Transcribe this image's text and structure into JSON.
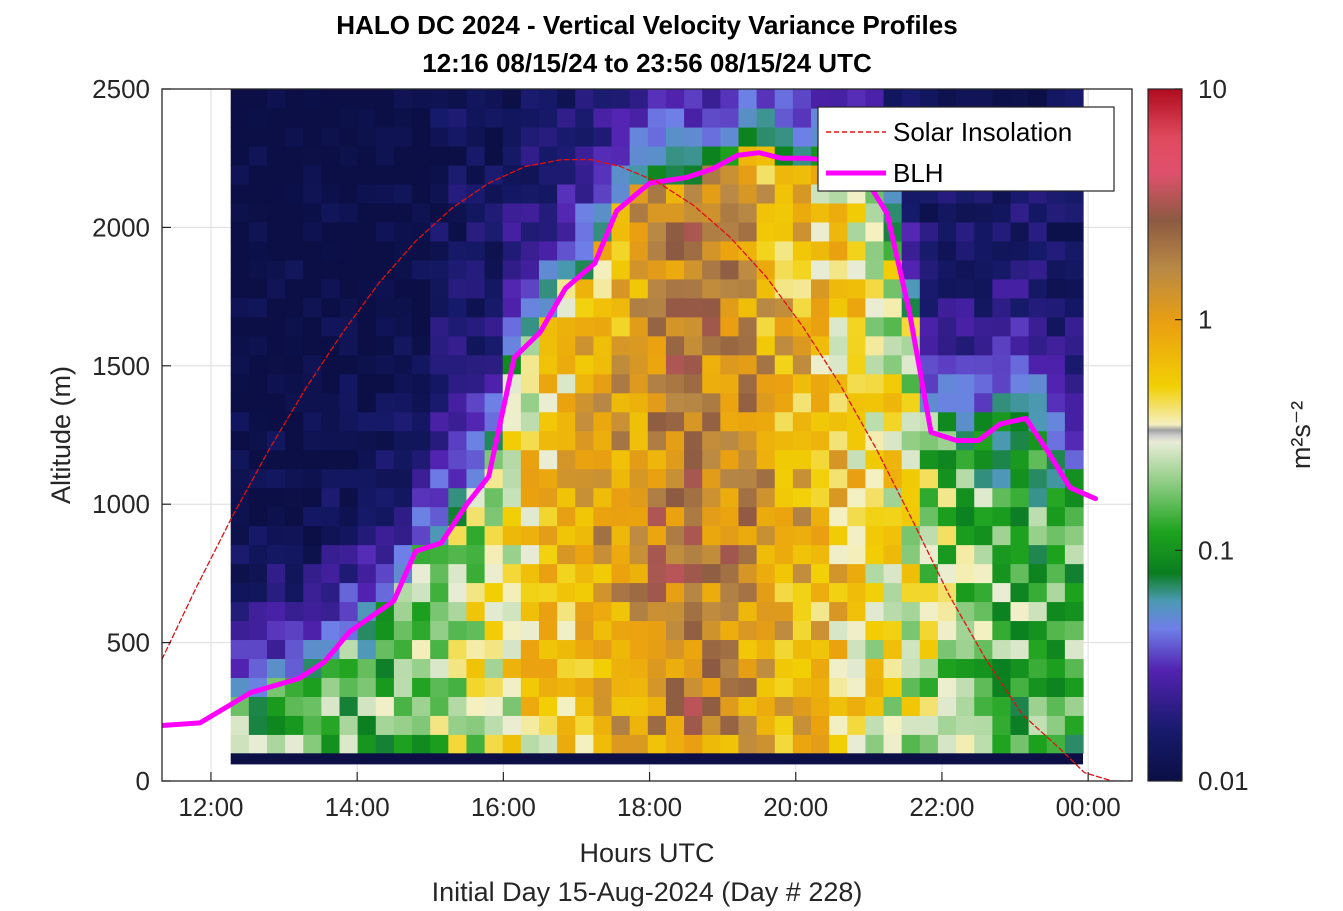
{
  "chart_data": {
    "type": "heatmap",
    "title": "HALO DC 2024 - Vertical Velocity Variance Profiles",
    "subtitle": "12:16 08/15/24 to 23:56 08/15/24  UTC",
    "xlabel": "Hours UTC",
    "xlabel2": "Initial Day 15-Aug-2024 (Day # 228)",
    "ylabel": "Altitude (m)",
    "xlim": [
      11.33,
      24.6
    ],
    "ylim": [
      0,
      2500
    ],
    "x_ticks": [
      12,
      14,
      16,
      18,
      20,
      22,
      24
    ],
    "x_tick_labels": [
      "12:00",
      "14:00",
      "16:00",
      "18:00",
      "20:00",
      "22:00",
      "00:00"
    ],
    "y_ticks": [
      0,
      500,
      1000,
      1500,
      2000,
      2500
    ],
    "y_tick_labels": [
      "0",
      "500",
      "1000",
      "1500",
      "2000",
      "2500"
    ],
    "grid": true,
    "colorbar": {
      "label": "m²s⁻²",
      "scale": "log",
      "range": [
        0.01,
        10
      ],
      "tick_labels": [
        "0.01",
        "0.1",
        "1",
        "10"
      ]
    },
    "heatmap_x_range_hours": [
      12.27,
      23.93
    ],
    "heatmap_y_range_m": [
      100,
      2500
    ],
    "legend": {
      "position": "top-right",
      "entries": [
        "Solar Insolation",
        "BLH"
      ]
    },
    "series": [
      {
        "name": "BLH",
        "color": "#ff00ff",
        "x": [
          11.3,
          11.85,
          12.55,
          13.2,
          13.55,
          13.9,
          14.5,
          14.8,
          15.15,
          15.5,
          15.8,
          16.15,
          16.5,
          16.85,
          17.25,
          17.55,
          18.0,
          18.5,
          18.85,
          19.2,
          19.5,
          19.8,
          20.15,
          20.5,
          20.9,
          21.25,
          21.55,
          21.85,
          22.2,
          22.5,
          22.8,
          23.15,
          23.45,
          23.75,
          24.1
        ],
        "y": [
          200,
          210,
          320,
          370,
          430,
          540,
          650,
          830,
          860,
          1000,
          1100,
          1530,
          1620,
          1780,
          1870,
          2060,
          2160,
          2180,
          2210,
          2260,
          2270,
          2250,
          2250,
          2240,
          2200,
          2050,
          1700,
          1260,
          1230,
          1230,
          1290,
          1310,
          1190,
          1060,
          1020
        ]
      },
      {
        "name": "Solar Insolation",
        "color": "#e01010",
        "style": "dashed",
        "x": [
          11.33,
          11.8,
          12.3,
          12.8,
          13.3,
          13.8,
          14.3,
          14.8,
          15.3,
          15.8,
          16.3,
          16.8,
          17.2,
          17.6,
          18.1,
          18.6,
          19.1,
          19.6,
          20.1,
          20.6,
          21.1,
          21.6,
          22.1,
          22.6,
          23.1,
          23.6,
          23.95,
          24.33,
          24.6
        ],
        "y": [
          440,
          700,
          960,
          1200,
          1420,
          1620,
          1800,
          1950,
          2070,
          2160,
          2220,
          2245,
          2245,
          2220,
          2165,
          2080,
          1965,
          1820,
          1640,
          1435,
          1200,
          940,
          670,
          440,
          240,
          120,
          30,
          0,
          0
        ]
      }
    ]
  }
}
